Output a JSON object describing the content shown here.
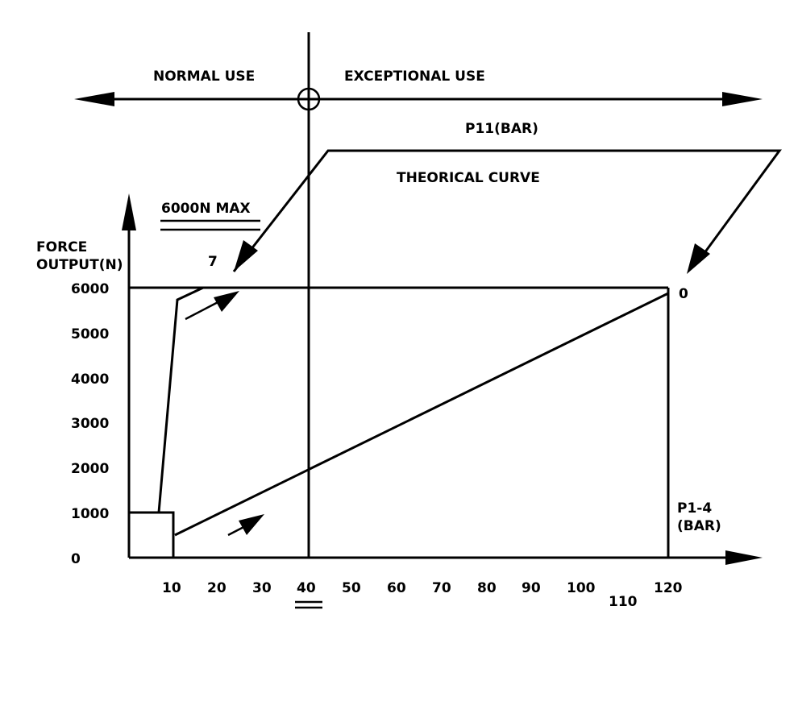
{
  "labels": {
    "normal_use": "NORMAL USE",
    "exceptional_use": "EXCEPTIONAL USE",
    "p11_bar": "P11(BAR)",
    "theorical_curve": "THEORICAL CURVE",
    "max_force": "6000N MAX",
    "y_axis_line1": "FORCE",
    "y_axis_line2": "OUTPUT(N)",
    "p11_low": "7",
    "p11_high": "0",
    "x_axis_line1": "P1-4",
    "x_axis_line2": "(BAR)"
  },
  "y_ticks": [
    "0",
    "1000",
    "2000",
    "3000",
    "4000",
    "5000",
    "6000"
  ],
  "x_ticks": [
    "10",
    "20",
    "30",
    "40",
    "50",
    "60",
    "70",
    "80",
    "90",
    "100",
    "110",
    "120"
  ],
  "colors": {
    "ink": "#000000",
    "background": "#ffffff"
  }
}
